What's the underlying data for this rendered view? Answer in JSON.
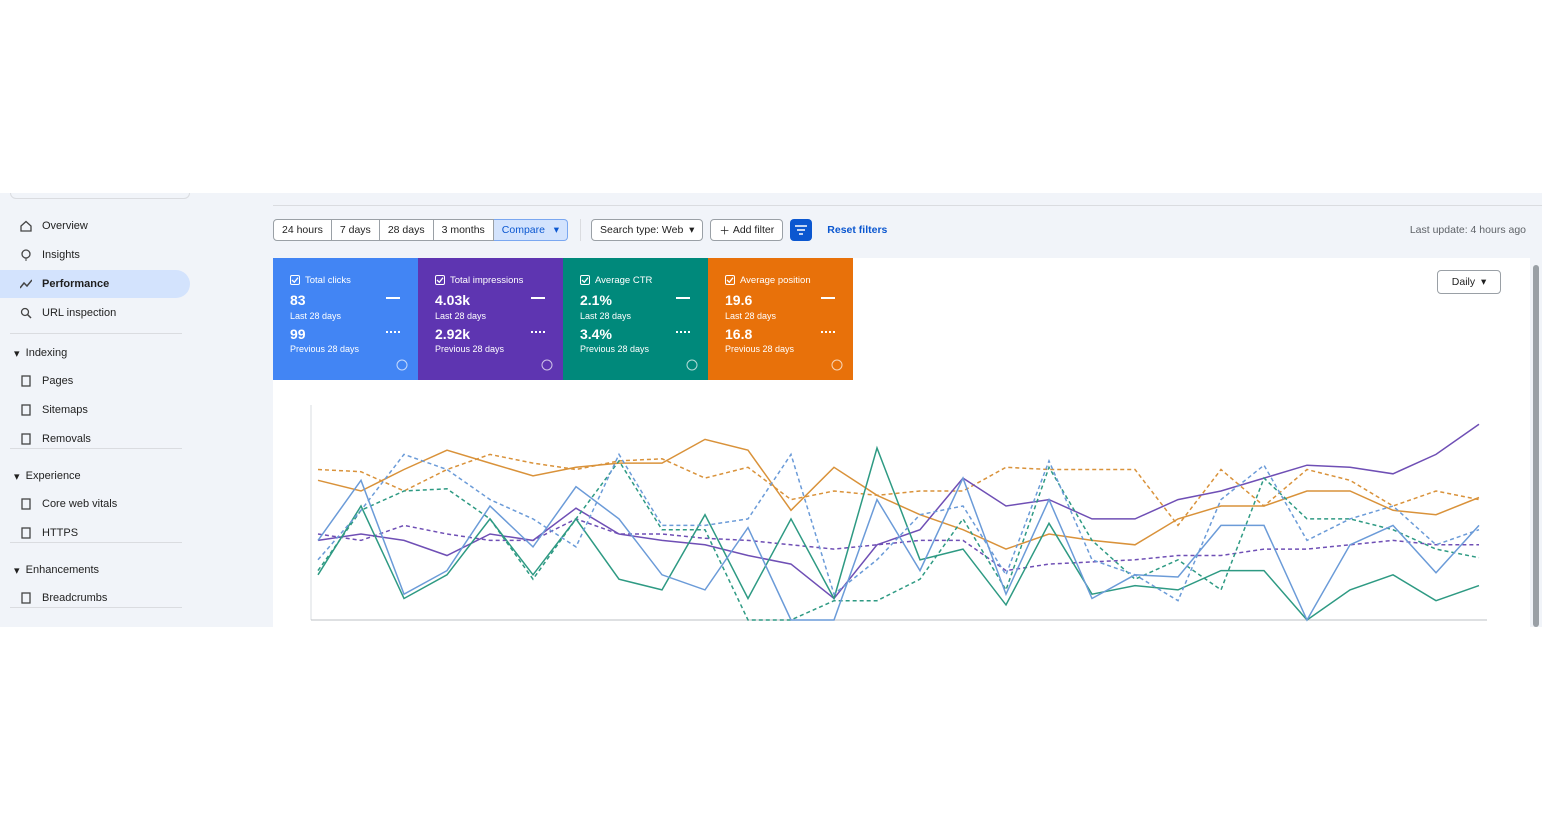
{
  "sidebar": {
    "items": [
      "Overview",
      "Insights",
      "Performance",
      "URL inspection"
    ],
    "sections": [
      {
        "title": "Indexing",
        "items": [
          "Pages",
          "Sitemaps",
          "Removals"
        ]
      },
      {
        "title": "Experience",
        "items": [
          "Core web vitals",
          "HTTPS"
        ]
      },
      {
        "title": "Enhancements",
        "items": [
          "Breadcrumbs"
        ]
      }
    ]
  },
  "toolbar": {
    "ranges": [
      "24 hours",
      "7 days",
      "28 days",
      "3 months",
      "Compare"
    ],
    "search_type": "Search type: Web",
    "add_filter": "Add filter",
    "reset": "Reset filters",
    "last_update": "Last update: 4 hours ago"
  },
  "cards": [
    {
      "label": "Total clicks",
      "current": "83",
      "current_period": "Last 28 days",
      "previous": "99",
      "previous_period": "Previous 28 days",
      "color": "#4285f4"
    },
    {
      "label": "Total impressions",
      "current": "4.03k",
      "current_period": "Last 28 days",
      "previous": "2.92k",
      "previous_period": "Previous 28 days",
      "color": "#5e35b1"
    },
    {
      "label": "Average CTR",
      "current": "2.1%",
      "current_period": "Last 28 days",
      "previous": "3.4%",
      "previous_period": "Previous 28 days",
      "color": "#00897b"
    },
    {
      "label": "Average position",
      "current": "19.6",
      "current_period": "Last 28 days",
      "previous": "16.8",
      "previous_period": "Previous 28 days",
      "color": "#e8710a"
    }
  ],
  "granularity": "Daily",
  "chart_data": {
    "type": "line",
    "ylim": [
      0,
      100
    ],
    "series": [
      {
        "color": "#d9923a",
        "dashed": false,
        "values": [
          65,
          60,
          70,
          79,
          73,
          67,
          71,
          73,
          73,
          84,
          79,
          51,
          71,
          58,
          49,
          42,
          33,
          40,
          37,
          35,
          47,
          53,
          53,
          60,
          60,
          51,
          49,
          57
        ]
      },
      {
        "color": "#d9923a",
        "dashed": true,
        "values": [
          70,
          69,
          60,
          70,
          77,
          73,
          70,
          74,
          75,
          66,
          71,
          56,
          60,
          58,
          60,
          60,
          71,
          70,
          70,
          70,
          44,
          70,
          53,
          70,
          65,
          53,
          60,
          56
        ]
      },
      {
        "color": "#6f4fb5",
        "dashed": false,
        "values": [
          37,
          40,
          37,
          30,
          40,
          37,
          52,
          40,
          37,
          35,
          30,
          26,
          10,
          35,
          42,
          66,
          53,
          56,
          47,
          47,
          56,
          60,
          66,
          72,
          71,
          68,
          77,
          91
        ]
      },
      {
        "color": "#6f4fb5",
        "dashed": true,
        "values": [
          40,
          37,
          44,
          40,
          37,
          37,
          47,
          40,
          40,
          38,
          37,
          35,
          33,
          35,
          37,
          37,
          23,
          26,
          27,
          28,
          30,
          30,
          33,
          33,
          35,
          37,
          35,
          35
        ]
      },
      {
        "color": "#2e9a83",
        "dashed": false,
        "values": [
          21,
          53,
          10,
          21,
          47,
          21,
          47,
          19,
          14,
          49,
          10,
          47,
          10,
          80,
          28,
          33,
          7,
          45,
          12,
          16,
          14,
          23,
          23,
          0,
          14,
          21,
          9,
          16
        ]
      },
      {
        "color": "#2e9a83",
        "dashed": true,
        "values": [
          23,
          51,
          60,
          61,
          47,
          19,
          47,
          74,
          42,
          42,
          0,
          0,
          9,
          9,
          19,
          47,
          14,
          71,
          37,
          19,
          28,
          14,
          66,
          47,
          47,
          42,
          33,
          29
        ]
      },
      {
        "color": "#6b9bd8",
        "dashed": false,
        "values": [
          37,
          65,
          12,
          23,
          53,
          34,
          62,
          47,
          21,
          14,
          43,
          0,
          0,
          56,
          23,
          66,
          12,
          56,
          10,
          21,
          20,
          44,
          44,
          0,
          35,
          44,
          22,
          44
        ]
      },
      {
        "color": "#6b9bd8",
        "dashed": true,
        "values": [
          28,
          51,
          77,
          70,
          56,
          47,
          34,
          77,
          44,
          44,
          47,
          77,
          12,
          28,
          49,
          53,
          21,
          74,
          28,
          21,
          9,
          56,
          72,
          37,
          47,
          53,
          35,
          42
        ]
      }
    ]
  }
}
